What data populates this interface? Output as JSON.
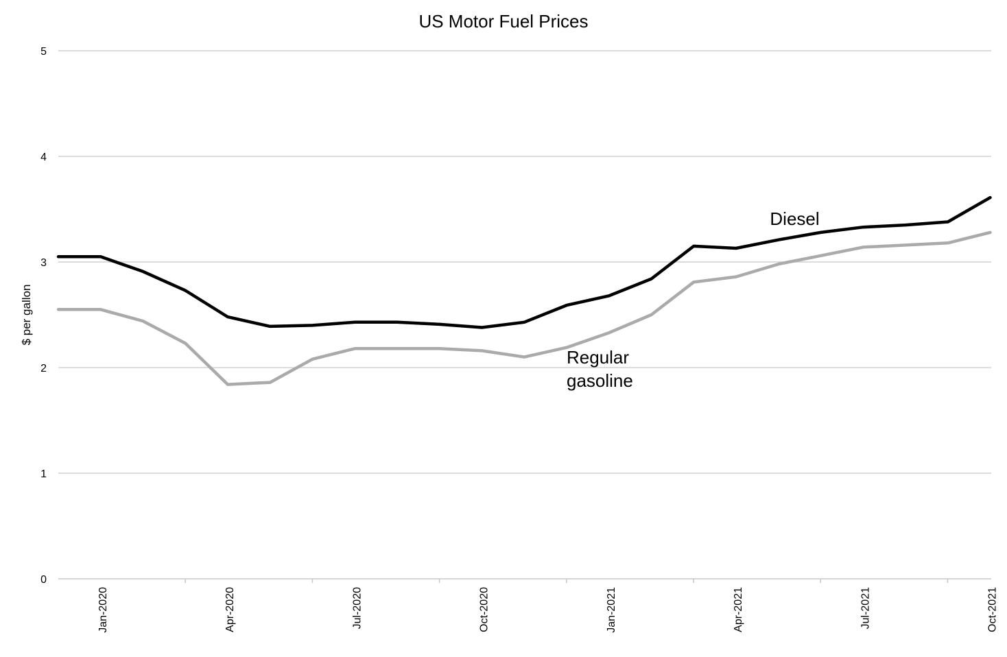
{
  "chart_data": {
    "type": "line",
    "title": "US Motor Fuel Prices",
    "xlabel": "",
    "ylabel": "$ per gallon",
    "ylim": [
      0,
      5
    ],
    "yticks": [
      0,
      1,
      2,
      3,
      4,
      5
    ],
    "grid": true,
    "x": [
      "2019-12",
      "2020-01",
      "2020-02",
      "2020-03",
      "2020-04",
      "2020-05",
      "2020-06",
      "2020-07",
      "2020-08",
      "2020-09",
      "2020-10",
      "2020-11",
      "2020-12",
      "2021-01",
      "2021-02",
      "2021-03",
      "2021-04",
      "2021-05",
      "2021-06",
      "2021-07",
      "2021-08",
      "2021-09",
      "2021-10"
    ],
    "xtick_labels": [
      "Jan-2020",
      "Apr-2020",
      "Jul-2020",
      "Oct-2020",
      "Jan-2021",
      "Apr-2021",
      "Jul-2021",
      "Oct-2021"
    ],
    "series": [
      {
        "name": "Diesel",
        "color": "#000000",
        "values": [
          3.05,
          3.05,
          2.91,
          2.73,
          2.48,
          2.39,
          2.4,
          2.43,
          2.43,
          2.41,
          2.38,
          2.43,
          2.59,
          2.68,
          2.84,
          3.15,
          3.13,
          3.21,
          3.28,
          3.33,
          3.35,
          3.38,
          3.61
        ]
      },
      {
        "name": "Regular gasoline",
        "label_lines": [
          "Regular",
          "gasoline"
        ],
        "color": "#aaaaaa",
        "values": [
          2.55,
          2.55,
          2.44,
          2.23,
          1.84,
          1.86,
          2.08,
          2.18,
          2.18,
          2.18,
          2.16,
          2.1,
          2.19,
          2.33,
          2.5,
          2.81,
          2.86,
          2.98,
          3.06,
          3.14,
          3.16,
          3.18,
          3.28
        ]
      }
    ]
  }
}
